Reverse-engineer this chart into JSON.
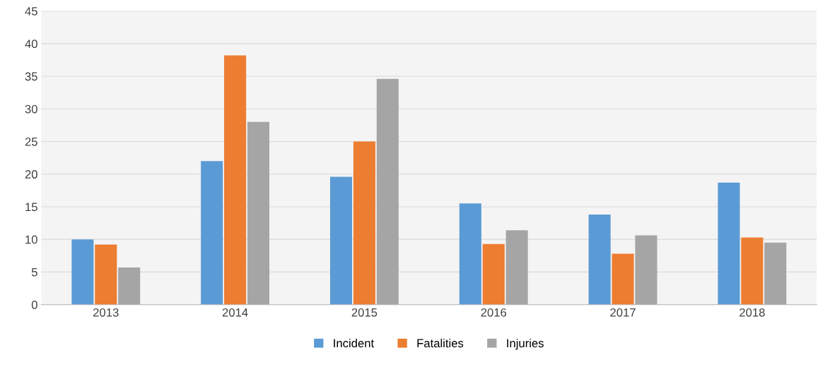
{
  "chart_data": {
    "type": "bar",
    "categories": [
      "2013",
      "2014",
      "2015",
      "2016",
      "2017",
      "2018"
    ],
    "series": [
      {
        "name": "Incident",
        "color": "#5b9bd5",
        "values": [
          10,
          22,
          19.6,
          15.5,
          13.8,
          18.7
        ]
      },
      {
        "name": "Fatalities",
        "color": "#ed7d31",
        "values": [
          9.2,
          38.2,
          25,
          9.3,
          7.8,
          10.3
        ]
      },
      {
        "name": "Injuries",
        "color": "#a5a5a5",
        "values": [
          5.7,
          28,
          34.6,
          11.4,
          10.6,
          9.5
        ]
      }
    ],
    "ylim": [
      0,
      45
    ],
    "yticks": [
      0,
      5,
      10,
      15,
      20,
      25,
      30,
      35,
      40,
      45
    ],
    "grid": "y",
    "legend": "bottom"
  }
}
